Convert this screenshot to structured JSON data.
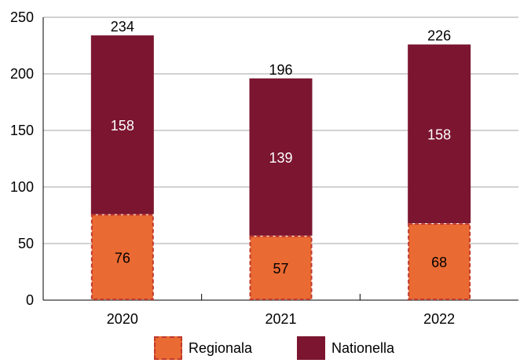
{
  "chart_data": {
    "type": "bar",
    "stacked": true,
    "categories": [
      "2020",
      "2021",
      "2022"
    ],
    "series": [
      {
        "name": "Regionala",
        "values": [
          76,
          57,
          68
        ],
        "color": "#ea6a33",
        "border": "#c0392b",
        "border_style": "dashed"
      },
      {
        "name": "Nationella",
        "values": [
          158,
          139,
          158
        ],
        "color": "#7b1530"
      }
    ],
    "totals": [
      234,
      196,
      226
    ],
    "ylim": [
      0,
      250
    ],
    "yticks": [
      "0",
      "50",
      "100",
      "150",
      "200",
      "250"
    ],
    "grid": true,
    "legend_position": "bottom",
    "title": "",
    "xlabel": "",
    "ylabel": ""
  },
  "legend": {
    "items": [
      {
        "label": "Regionala"
      },
      {
        "label": "Nationella"
      }
    ]
  }
}
